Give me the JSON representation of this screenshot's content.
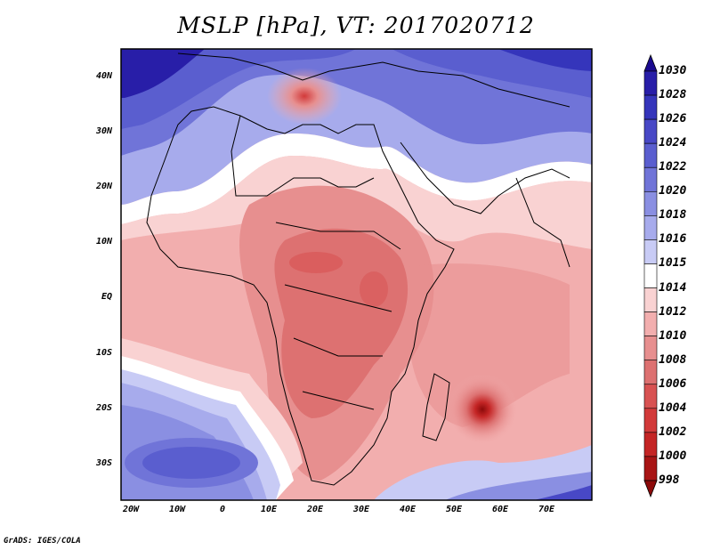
{
  "title": "MSLP [hPa], VT: 2017020712",
  "footer": "GrADS: IGES/COLA",
  "map": {
    "variable": "Mean Sea Level Pressure",
    "units": "hPa",
    "lat_ticks": [
      "40N",
      "30N",
      "20N",
      "10N",
      "EQ",
      "10S",
      "20S",
      "30S"
    ],
    "lon_ticks": [
      "20W",
      "10W",
      "0",
      "10E",
      "20E",
      "30E",
      "40E",
      "50E",
      "60E",
      "70E"
    ],
    "features": {
      "low_mediterranean": "Low over central Mediterranean",
      "low_mascarene": "Deep low east of Madagascar",
      "high_atlantic_north": "High over North Atlantic",
      "high_atlantic_south": "High over South Atlantic"
    }
  },
  "colorbar": {
    "labels": [
      "1030",
      "1028",
      "1026",
      "1024",
      "1022",
      "1020",
      "1018",
      "1016",
      "1015",
      "1014",
      "1012",
      "1010",
      "1008",
      "1006",
      "1004",
      "1002",
      "1000",
      "998"
    ],
    "colors": [
      "#1a0a8f",
      "#281ea8",
      "#3535bb",
      "#4848c6",
      "#5a5ecf",
      "#7074d8",
      "#8a8fe2",
      "#a7abec",
      "#c8cbf5",
      "#ffffff",
      "#f9d2d2",
      "#f2aeae",
      "#e78f8f",
      "#dd7171",
      "#d85252",
      "#d23a3a",
      "#c42525",
      "#a81515",
      "#8c0a0a"
    ]
  }
}
